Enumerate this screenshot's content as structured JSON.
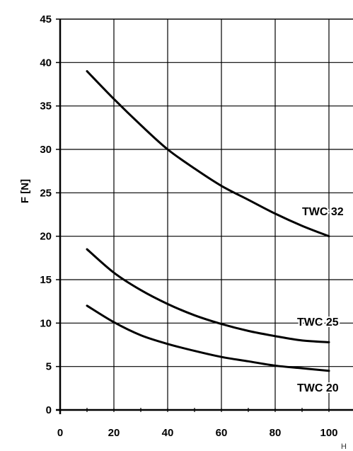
{
  "chart_data": {
    "type": "line",
    "ylabel": "F [N]",
    "xlabel": "H",
    "xlim": [
      0,
      110
    ],
    "ylim": [
      0,
      45
    ],
    "x_ticks": [
      "0",
      "20",
      "40",
      "60",
      "80",
      "100"
    ],
    "y_ticks": [
      "0",
      "5",
      "10",
      "15",
      "20",
      "25",
      "30",
      "35",
      "40",
      "45"
    ],
    "grid": true,
    "series": [
      {
        "name": "TWC 32",
        "x": [
          10,
          20,
          30,
          40,
          50,
          60,
          70,
          80,
          90,
          100
        ],
        "y": [
          39,
          35.8,
          32.8,
          30,
          27.8,
          25.8,
          24.2,
          22.6,
          21.2,
          20
        ]
      },
      {
        "name": "TWC 25",
        "x": [
          10,
          20,
          30,
          40,
          50,
          60,
          70,
          80,
          90,
          100
        ],
        "y": [
          18.5,
          15.8,
          13.8,
          12.2,
          10.9,
          9.9,
          9.1,
          8.5,
          8.0,
          7.8
        ]
      },
      {
        "name": "TWC 20",
        "x": [
          10,
          20,
          30,
          40,
          50,
          60,
          70,
          80,
          90,
          100
        ],
        "y": [
          12,
          10.1,
          8.6,
          7.6,
          6.8,
          6.1,
          5.6,
          5.1,
          4.8,
          4.5
        ]
      }
    ]
  }
}
